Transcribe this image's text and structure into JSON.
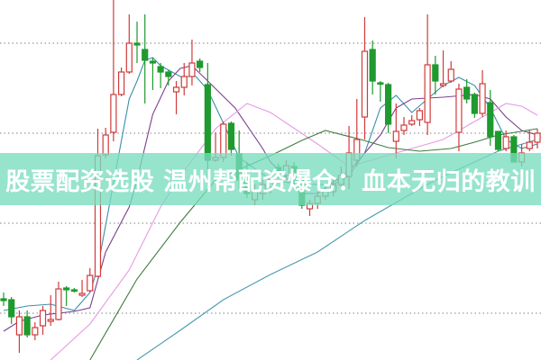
{
  "banner": {
    "title": "股票配资选股 温州帮配资爆仓：血本无归的教训"
  },
  "colors": {
    "up": "#d23a3a",
    "down": "#1e9a2e",
    "banner": "#78dcbe",
    "grid": "#9a9a9a"
  },
  "chart_data": {
    "type": "candlestick",
    "title": "",
    "xlabel": "",
    "ylabel": "",
    "ylim": [
      0,
      100
    ],
    "xlim": [
      0,
      68
    ],
    "grid": true,
    "gridlines": [
      88,
      63,
      38,
      13
    ],
    "candles_format": [
      "day",
      "open",
      "close",
      "high",
      "low"
    ],
    "candles": [
      [
        0,
        17,
        16.5,
        18.75,
        15
      ],
      [
        1,
        16.75,
        12,
        17.5,
        10
      ],
      [
        2,
        7,
        12,
        13.75,
        2
      ],
      [
        3,
        12,
        7,
        13.75,
        6.25
      ],
      [
        4,
        7,
        9,
        10.5,
        5.5
      ],
      [
        5,
        9.5,
        13.75,
        15,
        7
      ],
      [
        6,
        10.75,
        11.25,
        18,
        9.5
      ],
      [
        7,
        11.25,
        19.75,
        21.75,
        11
      ],
      [
        8,
        20,
        19.5,
        20.5,
        15
      ],
      [
        9,
        19.5,
        19.25,
        20,
        18.75
      ],
      [
        10,
        18,
        18.5,
        22.25,
        17.5
      ],
      [
        11,
        19.25,
        23.5,
        25.5,
        18.75
      ],
      [
        12,
        23.25,
        56.75,
        64.25,
        23
      ],
      [
        13,
        57,
        62.5,
        64.5,
        56
      ],
      [
        14,
        63.25,
        73.75,
        100,
        60.75
      ],
      [
        15,
        73.75,
        80,
        81.25,
        73.25
      ],
      [
        16,
        80,
        88,
        96,
        79.5
      ],
      [
        17,
        88,
        87.5,
        94,
        82.5
      ],
      [
        18,
        86.25,
        83.25,
        96,
        71.25
      ],
      [
        19,
        83,
        82.5,
        84,
        75
      ],
      [
        20,
        81.5,
        80,
        82.5,
        75.5
      ],
      [
        21,
        80,
        78.75,
        80.5,
        76.25
      ],
      [
        22,
        74.5,
        75.75,
        77.5,
        68.25
      ],
      [
        23,
        75.75,
        78.75,
        82.5,
        73.5
      ],
      [
        24,
        78.75,
        82.5,
        89,
        76.25
      ],
      [
        25,
        83,
        81.25,
        83.75,
        80
      ],
      [
        26,
        76.5,
        55.5,
        82.5,
        50
      ],
      [
        27,
        55.5,
        56.25,
        63.25,
        55
      ],
      [
        28,
        56.25,
        65.5,
        66.25,
        55
      ],
      [
        29,
        65.75,
        58.5,
        66.25,
        56.75
      ],
      [
        30,
        57.25,
        50,
        63.75,
        47.5
      ],
      [
        31,
        50,
        46.25,
        55,
        45
      ],
      [
        32,
        44.5,
        47,
        48.75,
        43
      ],
      [
        33,
        46.25,
        48.75,
        50,
        44.5
      ],
      [
        34,
        48,
        50,
        52.5,
        46.25
      ],
      [
        35,
        53.5,
        52,
        54.5,
        50.5
      ],
      [
        36,
        51.25,
        54,
        55.5,
        50
      ],
      [
        37,
        53.75,
        50,
        55,
        47.5
      ],
      [
        38,
        52,
        43,
        53,
        42
      ],
      [
        39,
        42,
        43.5,
        44.5,
        40
      ],
      [
        40,
        43.5,
        45.5,
        46.75,
        42
      ],
      [
        41,
        45.5,
        47,
        48.75,
        44.5
      ],
      [
        42,
        46.75,
        48.75,
        51.25,
        45.5
      ],
      [
        43,
        48.75,
        51.25,
        53.75,
        47.5
      ],
      [
        44,
        51,
        57.5,
        65,
        47.5
      ],
      [
        45,
        55.5,
        61.25,
        72.5,
        53.75
      ],
      [
        46,
        67.5,
        85.75,
        95.25,
        61.25
      ],
      [
        47,
        86.25,
        77.5,
        88.75,
        73.75
      ],
      [
        48,
        77,
        76.75,
        77.5,
        71.75
      ],
      [
        49,
        76.5,
        65.5,
        77,
        63
      ],
      [
        50,
        60.75,
        63.5,
        71.25,
        56
      ],
      [
        51,
        63.75,
        65.25,
        67.5,
        62.5
      ],
      [
        52,
        65.5,
        66.5,
        68,
        65
      ],
      [
        53,
        66.75,
        69.25,
        70,
        65
      ],
      [
        54,
        66,
        82,
        96,
        62.5
      ],
      [
        55,
        82,
        77.5,
        84.5,
        73.75
      ],
      [
        56,
        76.25,
        76.75,
        86,
        75.75
      ],
      [
        57,
        77.5,
        80.75,
        83,
        77
      ],
      [
        58,
        63.25,
        75.25,
        76.75,
        58
      ],
      [
        59,
        75.75,
        72.5,
        78,
        71.25
      ],
      [
        60,
        73.75,
        68.5,
        74.25,
        67.25
      ],
      [
        61,
        68.5,
        76.75,
        80.5,
        67.5
      ],
      [
        62,
        71.5,
        62,
        75,
        59.5
      ],
      [
        63,
        63.5,
        58.5,
        63.5,
        58
      ],
      [
        64,
        58.75,
        62,
        63.75,
        58
      ],
      [
        65,
        62,
        55,
        62.5,
        55
      ],
      [
        66,
        55,
        57.5,
        60,
        53.75
      ],
      [
        67,
        58.75,
        60.5,
        63.75,
        58
      ],
      [
        68,
        60.5,
        63,
        64.25,
        58.75
      ]
    ],
    "moving_averages": [
      {
        "color": "#3a8fa8",
        "points": [
          [
            0,
            13.75
          ],
          [
            3,
            15
          ],
          [
            6,
            15.5
          ],
          [
            9,
            13.75
          ],
          [
            11,
            18.75
          ],
          [
            12,
            25.75
          ],
          [
            14.5,
            55
          ],
          [
            16,
            72.5
          ],
          [
            17,
            77.5
          ],
          [
            18,
            83.25
          ],
          [
            19,
            84
          ],
          [
            20,
            81.75
          ],
          [
            22.5,
            78.75
          ],
          [
            24.5,
            78.75
          ],
          [
            26,
            75
          ],
          [
            28,
            65.75
          ],
          [
            30,
            56.25
          ],
          [
            34,
            50
          ],
          [
            38,
            48.75
          ],
          [
            42,
            48.75
          ],
          [
            44,
            51.25
          ],
          [
            46,
            57.5
          ],
          [
            48,
            70
          ],
          [
            50,
            73.5
          ],
          [
            52,
            68.75
          ],
          [
            54,
            72.5
          ],
          [
            56,
            76.25
          ],
          [
            58,
            78.5
          ],
          [
            60,
            76.25
          ],
          [
            62,
            70
          ],
          [
            64,
            61.25
          ],
          [
            66,
            58.75
          ],
          [
            68,
            60
          ]
        ]
      },
      {
        "color": "#7b3f8c",
        "points": [
          [
            0,
            8
          ],
          [
            2,
            10.75
          ],
          [
            5,
            12.5
          ],
          [
            9,
            13.5
          ],
          [
            11,
            14.5
          ],
          [
            13,
            30
          ],
          [
            16,
            42.5
          ],
          [
            17,
            50
          ],
          [
            19,
            68.25
          ],
          [
            21,
            77.5
          ],
          [
            22.5,
            81
          ],
          [
            24,
            81.75
          ],
          [
            26,
            77.5
          ],
          [
            29.5,
            70
          ],
          [
            33,
            58.75
          ],
          [
            34,
            55
          ],
          [
            38,
            46.25
          ],
          [
            40,
            46.25
          ],
          [
            44,
            52.5
          ],
          [
            48,
            62.5
          ],
          [
            50,
            70
          ],
          [
            52,
            72.5
          ],
          [
            56,
            73
          ],
          [
            60,
            73.75
          ],
          [
            62,
            72.5
          ],
          [
            64,
            67.5
          ],
          [
            66,
            63.75
          ],
          [
            68,
            62.5
          ]
        ]
      },
      {
        "color": "#e69ae2",
        "points": [
          [
            6,
            0
          ],
          [
            11,
            10
          ],
          [
            16,
            25
          ],
          [
            20,
            42.5
          ],
          [
            23,
            52.5
          ],
          [
            27,
            64.25
          ],
          [
            31,
            71.25
          ],
          [
            34,
            68.75
          ],
          [
            40,
            60
          ],
          [
            44,
            53.75
          ],
          [
            48,
            56.25
          ],
          [
            52,
            58.75
          ],
          [
            56,
            61.25
          ],
          [
            60,
            66.25
          ],
          [
            64,
            71.25
          ],
          [
            66,
            70.5
          ],
          [
            68,
            68
          ]
        ]
      },
      {
        "color": "#3d7d3d",
        "points": [
          [
            11,
            0
          ],
          [
            17,
            22.5
          ],
          [
            22.5,
            38.25
          ],
          [
            27,
            50
          ],
          [
            34,
            56.75
          ],
          [
            38,
            61
          ],
          [
            41,
            63.75
          ],
          [
            45.5,
            61.25
          ],
          [
            49,
            59
          ],
          [
            53,
            58
          ],
          [
            57,
            58.75
          ],
          [
            60,
            60.5
          ],
          [
            63,
            62.5
          ],
          [
            68,
            64.25
          ]
        ]
      },
      {
        "color": "#4a9ab0",
        "points": [
          [
            17,
            0
          ],
          [
            22.5,
            8.25
          ],
          [
            28,
            16.75
          ],
          [
            34,
            23.75
          ],
          [
            40,
            30
          ],
          [
            46,
            38.75
          ],
          [
            52,
            46.25
          ],
          [
            55,
            50
          ],
          [
            59,
            54
          ],
          [
            63,
            58
          ],
          [
            68,
            61.25
          ]
        ]
      }
    ]
  }
}
